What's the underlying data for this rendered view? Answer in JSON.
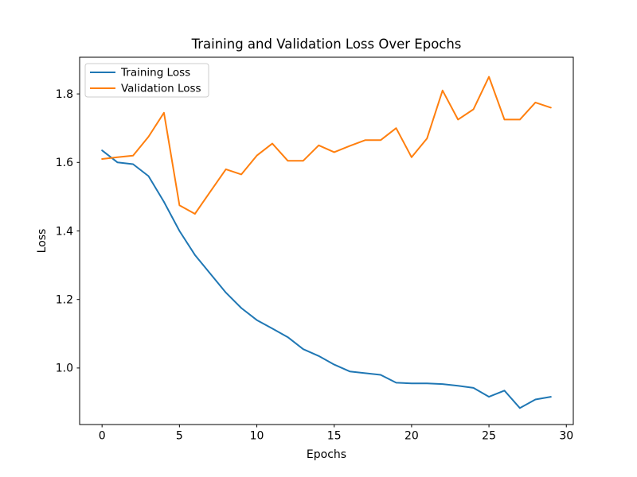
{
  "chart_data": {
    "type": "line",
    "title": "Training and Validation Loss Over Epochs",
    "xlabel": "Epochs",
    "ylabel": "Loss",
    "x": [
      0,
      1,
      2,
      3,
      4,
      5,
      6,
      7,
      8,
      9,
      10,
      11,
      12,
      13,
      14,
      15,
      16,
      17,
      18,
      19,
      20,
      21,
      22,
      23,
      24,
      25,
      26,
      27,
      28,
      29
    ],
    "series": [
      {
        "name": "Training Loss",
        "color": "#1f77b4",
        "values": [
          1.635,
          1.6,
          1.595,
          1.56,
          1.485,
          1.4,
          1.33,
          1.275,
          1.22,
          1.175,
          1.14,
          1.115,
          1.09,
          1.055,
          1.035,
          1.01,
          0.99,
          0.985,
          0.98,
          0.957,
          0.955,
          0.955,
          0.953,
          0.948,
          0.942,
          0.916,
          0.934,
          0.883,
          0.908,
          0.916
        ]
      },
      {
        "name": "Validation Loss",
        "color": "#ff7f0e",
        "values": [
          1.61,
          1.615,
          1.62,
          1.675,
          1.745,
          1.475,
          1.45,
          1.515,
          1.58,
          1.565,
          1.62,
          1.655,
          1.605,
          1.605,
          1.65,
          1.63,
          1.648,
          1.665,
          1.665,
          1.7,
          1.615,
          1.67,
          1.81,
          1.725,
          1.755,
          1.85,
          1.725,
          1.725,
          1.775,
          1.76
        ]
      }
    ],
    "xlim": [
      -1.45,
      30.45
    ],
    "ylim": [
      0.835,
      1.907
    ],
    "xticks": [
      0,
      5,
      10,
      15,
      20,
      25,
      30
    ],
    "yticks": [
      1.0,
      1.2,
      1.4,
      1.6,
      1.8
    ],
    "grid": false,
    "legend_position": "upper left",
    "axis_color": "#000000",
    "background_color": "#ffffff"
  }
}
